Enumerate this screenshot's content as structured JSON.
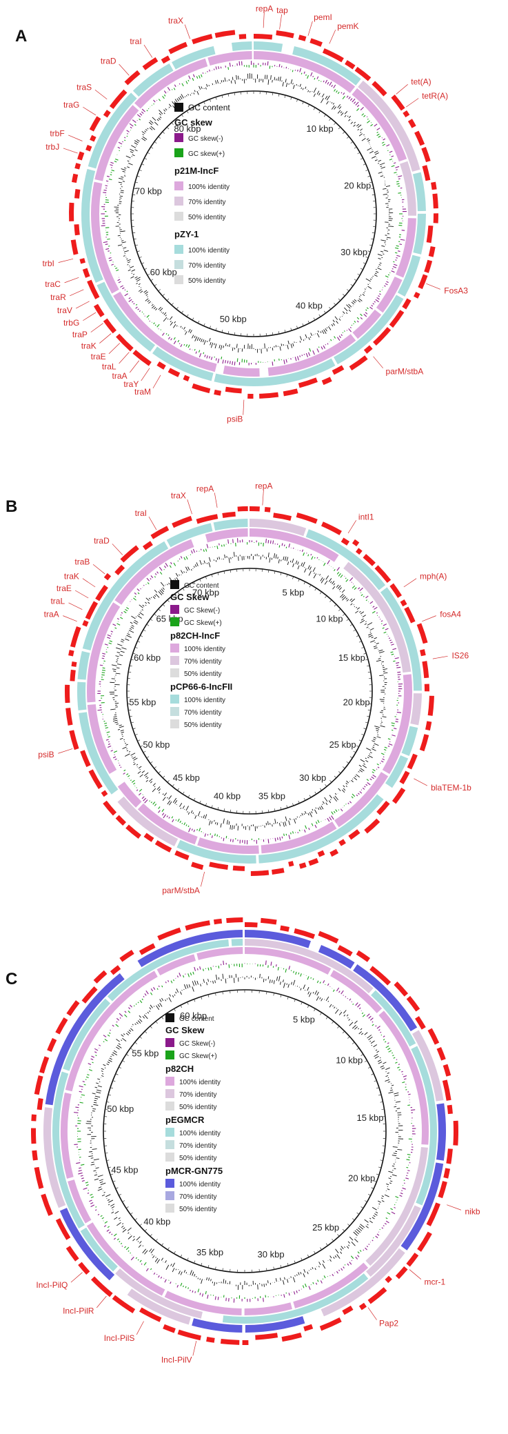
{
  "panels": [
    {
      "id": "A",
      "label": "A",
      "ticks": [
        {
          "text": "10 kbp",
          "deg": 38
        },
        {
          "text": "20 kbp",
          "deg": 75
        },
        {
          "text": "30 kbp",
          "deg": 111
        },
        {
          "text": "40 kbp",
          "deg": 149
        },
        {
          "text": "50 kbp",
          "deg": 191
        },
        {
          "text": "60 kbp",
          "deg": 237
        },
        {
          "text": "70 kbp",
          "deg": 282
        },
        {
          "text": "80 kbp",
          "deg": 322
        }
      ],
      "genes": [
        {
          "text": "traX",
          "deg": 340
        },
        {
          "text": "repA",
          "deg": 3
        },
        {
          "text": "tap",
          "deg": 8
        },
        {
          "text": "pemI",
          "deg": 17
        },
        {
          "text": "pemK",
          "deg": 24
        },
        {
          "text": "tet(A)",
          "deg": 50
        },
        {
          "text": "tetR(A)",
          "deg": 55
        },
        {
          "text": "FosA3",
          "deg": 112
        },
        {
          "text": "parM/stbA",
          "deg": 140
        },
        {
          "text": "psiB",
          "deg": 183
        },
        {
          "text": "traM",
          "deg": 210
        },
        {
          "text": "traY",
          "deg": 214
        },
        {
          "text": "traA",
          "deg": 218
        },
        {
          "text": "traL",
          "deg": 222
        },
        {
          "text": "traE",
          "deg": 226
        },
        {
          "text": "traK",
          "deg": 230
        },
        {
          "text": "traP",
          "deg": 234
        },
        {
          "text": "trbG",
          "deg": 238
        },
        {
          "text": "traV",
          "deg": 242
        },
        {
          "text": "traR",
          "deg": 246
        },
        {
          "text": "traC",
          "deg": 250
        },
        {
          "text": "trbI",
          "deg": 256
        },
        {
          "text": "trbJ",
          "deg": 289
        },
        {
          "text": "trbF",
          "deg": 293
        },
        {
          "text": "traG",
          "deg": 302
        },
        {
          "text": "traS",
          "deg": 308
        },
        {
          "text": "traD",
          "deg": 318
        },
        {
          "text": "traI",
          "deg": 327
        }
      ],
      "legend": {
        "gc_content": "GC content",
        "gc_skew_title": "GC skew",
        "skew_neg": "GC skew(-)",
        "skew_pos": "GC skew(+)",
        "groups": [
          {
            "title": "p21M-IncF",
            "c100": "#dda8dd",
            "c70": "#dcc7de",
            "items": [
              "100% identity",
              "70% identity",
              "50% identity"
            ]
          },
          {
            "title": "pZY-1",
            "c100": "#a6dcdc",
            "c70": "#c5dede",
            "items": [
              "100% identity",
              "70% identity",
              "50% identity"
            ]
          }
        ]
      }
    },
    {
      "id": "B",
      "label": "B",
      "ticks": [
        {
          "text": "5 kbp",
          "deg": 24
        },
        {
          "text": "10 kbp",
          "deg": 48
        },
        {
          "text": "15 kbp",
          "deg": 72
        },
        {
          "text": "20 kbp",
          "deg": 96
        },
        {
          "text": "25 kbp",
          "deg": 120
        },
        {
          "text": "30 kbp",
          "deg": 144
        },
        {
          "text": "35 kbp",
          "deg": 168
        },
        {
          "text": "40 kbp",
          "deg": 192
        },
        {
          "text": "45 kbp",
          "deg": 216
        },
        {
          "text": "50 kbp",
          "deg": 240
        },
        {
          "text": "55 kbp",
          "deg": 264
        },
        {
          "text": "60 kbp",
          "deg": 288
        },
        {
          "text": "65 kbp",
          "deg": 312
        },
        {
          "text": "70 kbp",
          "deg": 336
        }
      ],
      "genes": [
        {
          "text": "repA",
          "deg": 350
        },
        {
          "text": "repA",
          "deg": 4
        },
        {
          "text": "intI1",
          "deg": 32
        },
        {
          "text": "mph(A)",
          "deg": 56
        },
        {
          "text": "fosA4",
          "deg": 68
        },
        {
          "text": "IS26",
          "deg": 80
        },
        {
          "text": "blaTEM-1b",
          "deg": 118
        },
        {
          "text": "parM/stbA",
          "deg": 194
        },
        {
          "text": "psiB",
          "deg": 252
        },
        {
          "text": "traA",
          "deg": 292
        },
        {
          "text": "traL",
          "deg": 296
        },
        {
          "text": "traE",
          "deg": 300
        },
        {
          "text": "traK",
          "deg": 304
        },
        {
          "text": "traB",
          "deg": 309
        },
        {
          "text": "traD",
          "deg": 317
        },
        {
          "text": "traI",
          "deg": 330
        },
        {
          "text": "traX",
          "deg": 342
        }
      ],
      "legend": {
        "gc_content": "GC content",
        "gc_skew_title": "GC Skew",
        "skew_neg": "GC Skew(-)",
        "skew_pos": "GC Skew(+)",
        "groups": [
          {
            "title": "p82CH-IncF",
            "c100": "#dda8dd",
            "c70": "#dcc7de",
            "items": [
              "100% identity",
              "70% identity",
              "50% identity"
            ]
          },
          {
            "title": "pCP66-6-IncFII",
            "c100": "#a6dcdc",
            "c70": "#c5dede",
            "items": [
              "100% identity",
              "70% identity",
              "50% identity"
            ]
          }
        ]
      }
    },
    {
      "id": "C",
      "label": "C",
      "ticks": [
        {
          "text": "5 kbp",
          "deg": 28
        },
        {
          "text": "10 kbp",
          "deg": 56
        },
        {
          "text": "15 kbp",
          "deg": 84
        },
        {
          "text": "20 kbp",
          "deg": 112
        },
        {
          "text": "25 kbp",
          "deg": 140
        },
        {
          "text": "30 kbp",
          "deg": 168
        },
        {
          "text": "35 kbp",
          "deg": 196
        },
        {
          "text": "40 kbp",
          "deg": 224
        },
        {
          "text": "45 kbp",
          "deg": 252
        },
        {
          "text": "50 kbp",
          "deg": 280
        },
        {
          "text": "55 kbp",
          "deg": 308
        },
        {
          "text": "60 kbp",
          "deg": 336
        }
      ],
      "genes": [
        {
          "text": "nikb",
          "deg": 110
        },
        {
          "text": "mcr-1",
          "deg": 130
        },
        {
          "text": "Pap2",
          "deg": 145
        },
        {
          "text": "IncI-PilV",
          "deg": 193
        },
        {
          "text": "IncI-PilS",
          "deg": 208
        },
        {
          "text": "IncI-PilR",
          "deg": 220
        },
        {
          "text": "IncI-PilQ",
          "deg": 229
        }
      ],
      "legend": {
        "gc_content": "GC content",
        "gc_skew_title": "GC Skew",
        "skew_neg": "GC Skew(-)",
        "skew_pos": "GC Skew(+)",
        "groups": [
          {
            "title": "p82CH",
            "c100": "#dda8dd",
            "c70": "#dcc7de",
            "items": [
              "100% identity",
              "70% identity",
              "50% identity"
            ]
          },
          {
            "title": "pEGMCR",
            "c100": "#a6dcdc",
            "c70": "#c5dede",
            "items": [
              "100% identity",
              "70% identity",
              "50% identity"
            ]
          },
          {
            "title": "pMCR-GN775",
            "c100": "#5b5bdc",
            "c70": "#a8a8e0",
            "items": [
              "100% identity",
              "70% identity",
              "50% identity"
            ]
          }
        ]
      }
    }
  ],
  "colors": {
    "gene_red": "#ee1c1c",
    "gene_label": "#d42a2a",
    "gc_black": "#111111",
    "skew_neg": "#8b1a8b",
    "skew_pos": "#1aa31a",
    "identity_50": "#dcdcdc",
    "pink_ring": "#dda8dd",
    "teal_ring": "#a6dcdc",
    "blue_ring": "#5b5bdc"
  }
}
